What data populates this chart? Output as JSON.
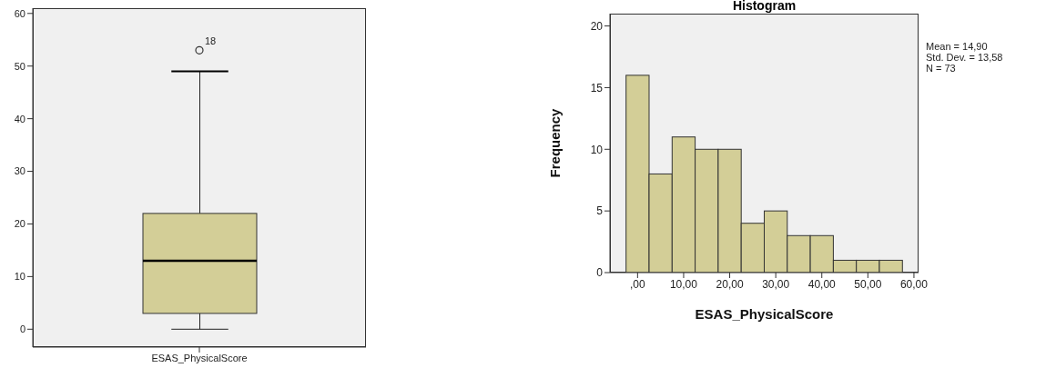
{
  "chart_data": [
    {
      "type": "box",
      "categories": [
        "ESAS_PhysicalScore"
      ],
      "color": "#d3ce97",
      "boxes": [
        {
          "low": 0,
          "q1": 3,
          "median": 13,
          "q3": 22,
          "high": 49,
          "outliers": [
            53
          ]
        }
      ],
      "ylim": [
        -3.4,
        61
      ],
      "yticks": [
        0,
        10,
        20,
        30,
        40,
        50,
        60
      ],
      "grid": false,
      "annotations": [
        "18"
      ]
    },
    {
      "type": "histogram",
      "title": "Histogram",
      "xlabel": "ESAS_PhysicalScore",
      "ylabel": "Frequency",
      "color": "#d3ce97",
      "bins": [
        -2.5,
        2.5,
        7.5,
        12.5,
        17.5,
        22.5,
        27.5,
        32.5,
        37.5,
        42.5,
        47.5,
        52.5,
        57.5
      ],
      "values": [
        16,
        8,
        11,
        10,
        10,
        4,
        5,
        3,
        3,
        1,
        1,
        1
      ],
      "xlim": [
        -6,
        61
      ],
      "xticks": [
        {
          "value": 0,
          "label": ",00"
        },
        {
          "value": 10,
          "label": "10,00"
        },
        {
          "value": 20,
          "label": "20,00"
        },
        {
          "value": 30,
          "label": "30,00"
        },
        {
          "value": 40,
          "label": "40,00"
        },
        {
          "value": 50,
          "label": "50,00"
        },
        {
          "value": 60,
          "label": "60,00"
        }
      ],
      "ylim": [
        0,
        21
      ],
      "yticks": [
        0,
        5,
        10,
        15,
        20
      ],
      "grid": false,
      "annotations": [
        "Mean = 14,90",
        "Std. Dev. = 13,58",
        "N = 73"
      ]
    }
  ]
}
